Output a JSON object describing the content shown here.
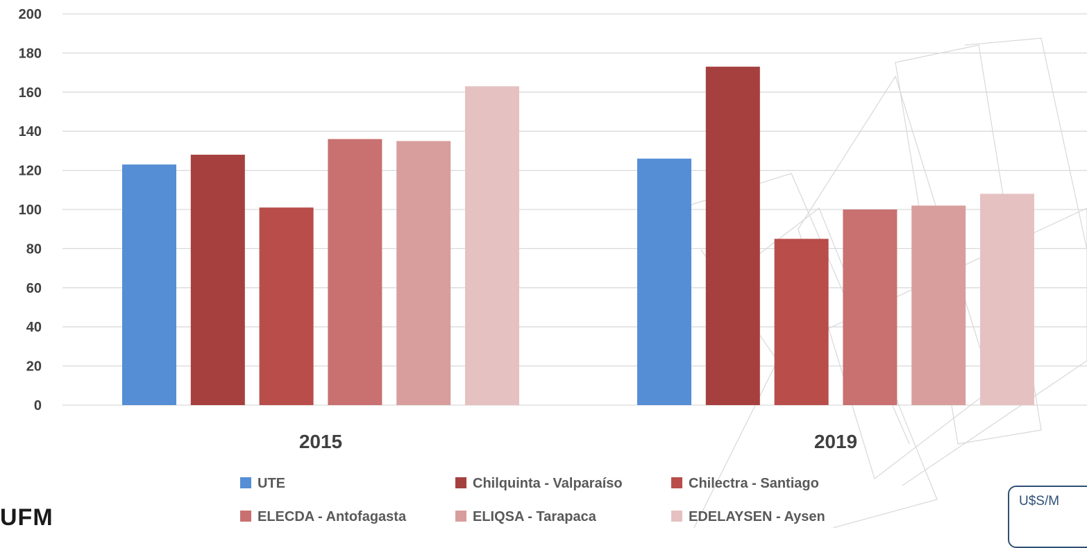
{
  "chart_data": {
    "type": "bar",
    "categories": [
      "2015",
      "2019"
    ],
    "series": [
      {
        "name": "UTE",
        "color": "#558ed5",
        "values": [
          123,
          126
        ]
      },
      {
        "name": "Chilquinta - Valparaíso",
        "color": "#a5403f",
        "values": [
          128,
          173
        ]
      },
      {
        "name": "Chilectra - Santiago",
        "color": "#b84d4a",
        "values": [
          101,
          85
        ]
      },
      {
        "name": "ELECDA  - Antofagasta",
        "color": "#c87170",
        "values": [
          136,
          100
        ]
      },
      {
        "name": "ELIQSA  - Tarapaca",
        "color": "#d89e9d",
        "values": [
          135,
          102
        ]
      },
      {
        "name": "EDELAYSEN  - Aysen",
        "color": "#e5c1c1",
        "values": [
          163,
          108
        ]
      }
    ],
    "ylim": [
      0,
      200
    ],
    "yticks": [
      0,
      20,
      40,
      60,
      80,
      100,
      120,
      140,
      160,
      180,
      200
    ],
    "grid": true,
    "legend_position": "bottom"
  },
  "logo_text": "UFM",
  "unit_box_text": "U$S/M"
}
